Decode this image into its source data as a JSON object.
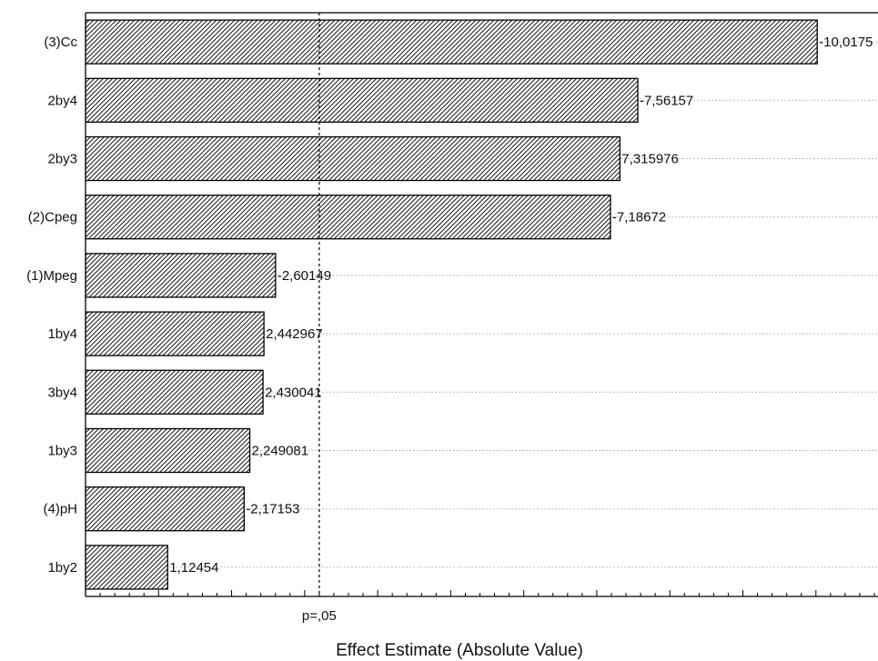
{
  "chart_data": {
    "type": "bar",
    "orientation": "horizontal",
    "xlabel": "Effect Estimate (Absolute Value)",
    "ylabel": "",
    "categories": [
      "(3)Cc",
      "2by4",
      "2by3",
      "(2)Cpeg",
      "(1)Mpeg",
      "1by4",
      "3by4",
      "1by3",
      "(4)pH",
      "1by2"
    ],
    "values": [
      10.0175,
      7.56157,
      7.315976,
      7.18672,
      2.60149,
      2.442967,
      2.430041,
      2.249081,
      2.17153,
      1.12454
    ],
    "value_labels": [
      "-10,0175",
      "-7,56157",
      "7,315976",
      "-7,18672",
      "-2,60149",
      "2,442967",
      "2,430041",
      "2,249081",
      "-2,17153",
      "1,12454"
    ],
    "xlim": [
      0,
      11
    ],
    "reference_line": {
      "value": 3.2,
      "label": "p=,05"
    },
    "grid": {
      "horizontal": true,
      "vertical": false
    },
    "bar_pattern": "diagonal-hatch",
    "bar_fill": "#ffffff",
    "bar_stroke": "#000000",
    "grid_color": "#bbbbbb"
  }
}
